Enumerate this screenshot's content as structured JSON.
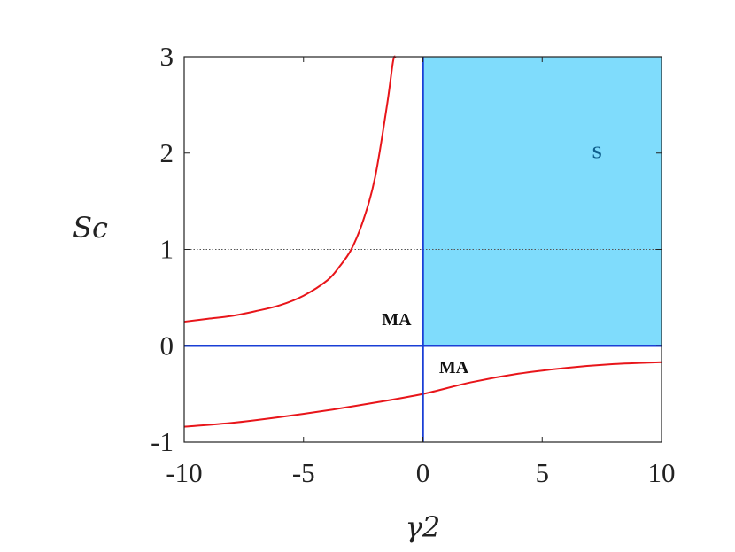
{
  "chart_data": {
    "type": "line",
    "xlabel": "γ2",
    "ylabel": "Sc",
    "xlim": [
      -10,
      10
    ],
    "ylim": [
      -1,
      3
    ],
    "x_ticks": [
      "-10",
      "-5",
      "0",
      "5",
      "10"
    ],
    "y_ticks": [
      "-1",
      "0",
      "1",
      "2",
      "3"
    ],
    "grid": false,
    "colors": {
      "curve": "#e8151a",
      "boundary": "#1a3fd6",
      "stable_fill": "#7fdcfc",
      "reference": "#555555"
    },
    "regions": [
      {
        "label": "S",
        "x": [
          0,
          10
        ],
        "y": [
          0,
          3
        ],
        "color": "#0e5e8c"
      },
      {
        "label": "MA",
        "x": -1.1,
        "y": 0.28,
        "color": "#111111"
      },
      {
        "label": "MA",
        "x": 1.3,
        "y": -0.22,
        "color": "#111111"
      }
    ],
    "boundaries": [
      {
        "x": [
          -10,
          10
        ],
        "y": [
          0,
          0
        ]
      },
      {
        "x": [
          0,
          0
        ],
        "y": [
          -1,
          3
        ]
      }
    ],
    "reference_line": {
      "x": [
        -10,
        10
      ],
      "y": [
        1,
        1
      ]
    },
    "series": [
      {
        "x": [
          -10,
          -9,
          -8,
          -7,
          -6,
          -5,
          -4,
          -3.5,
          -3,
          -2.5,
          -2,
          -1.5,
          -1.25,
          -1.15
        ],
        "y": [
          0.25,
          0.28,
          0.31,
          0.36,
          0.42,
          0.52,
          0.68,
          0.82,
          1.0,
          1.3,
          1.75,
          2.5,
          2.95,
          3.0
        ]
      },
      {
        "x": [
          -10,
          -8,
          -6,
          -4,
          -2,
          0,
          2,
          4,
          6,
          8,
          10
        ],
        "y": [
          -0.84,
          -0.8,
          -0.74,
          -0.67,
          -0.59,
          -0.5,
          -0.38,
          -0.29,
          -0.23,
          -0.19,
          -0.17
        ]
      }
    ]
  }
}
